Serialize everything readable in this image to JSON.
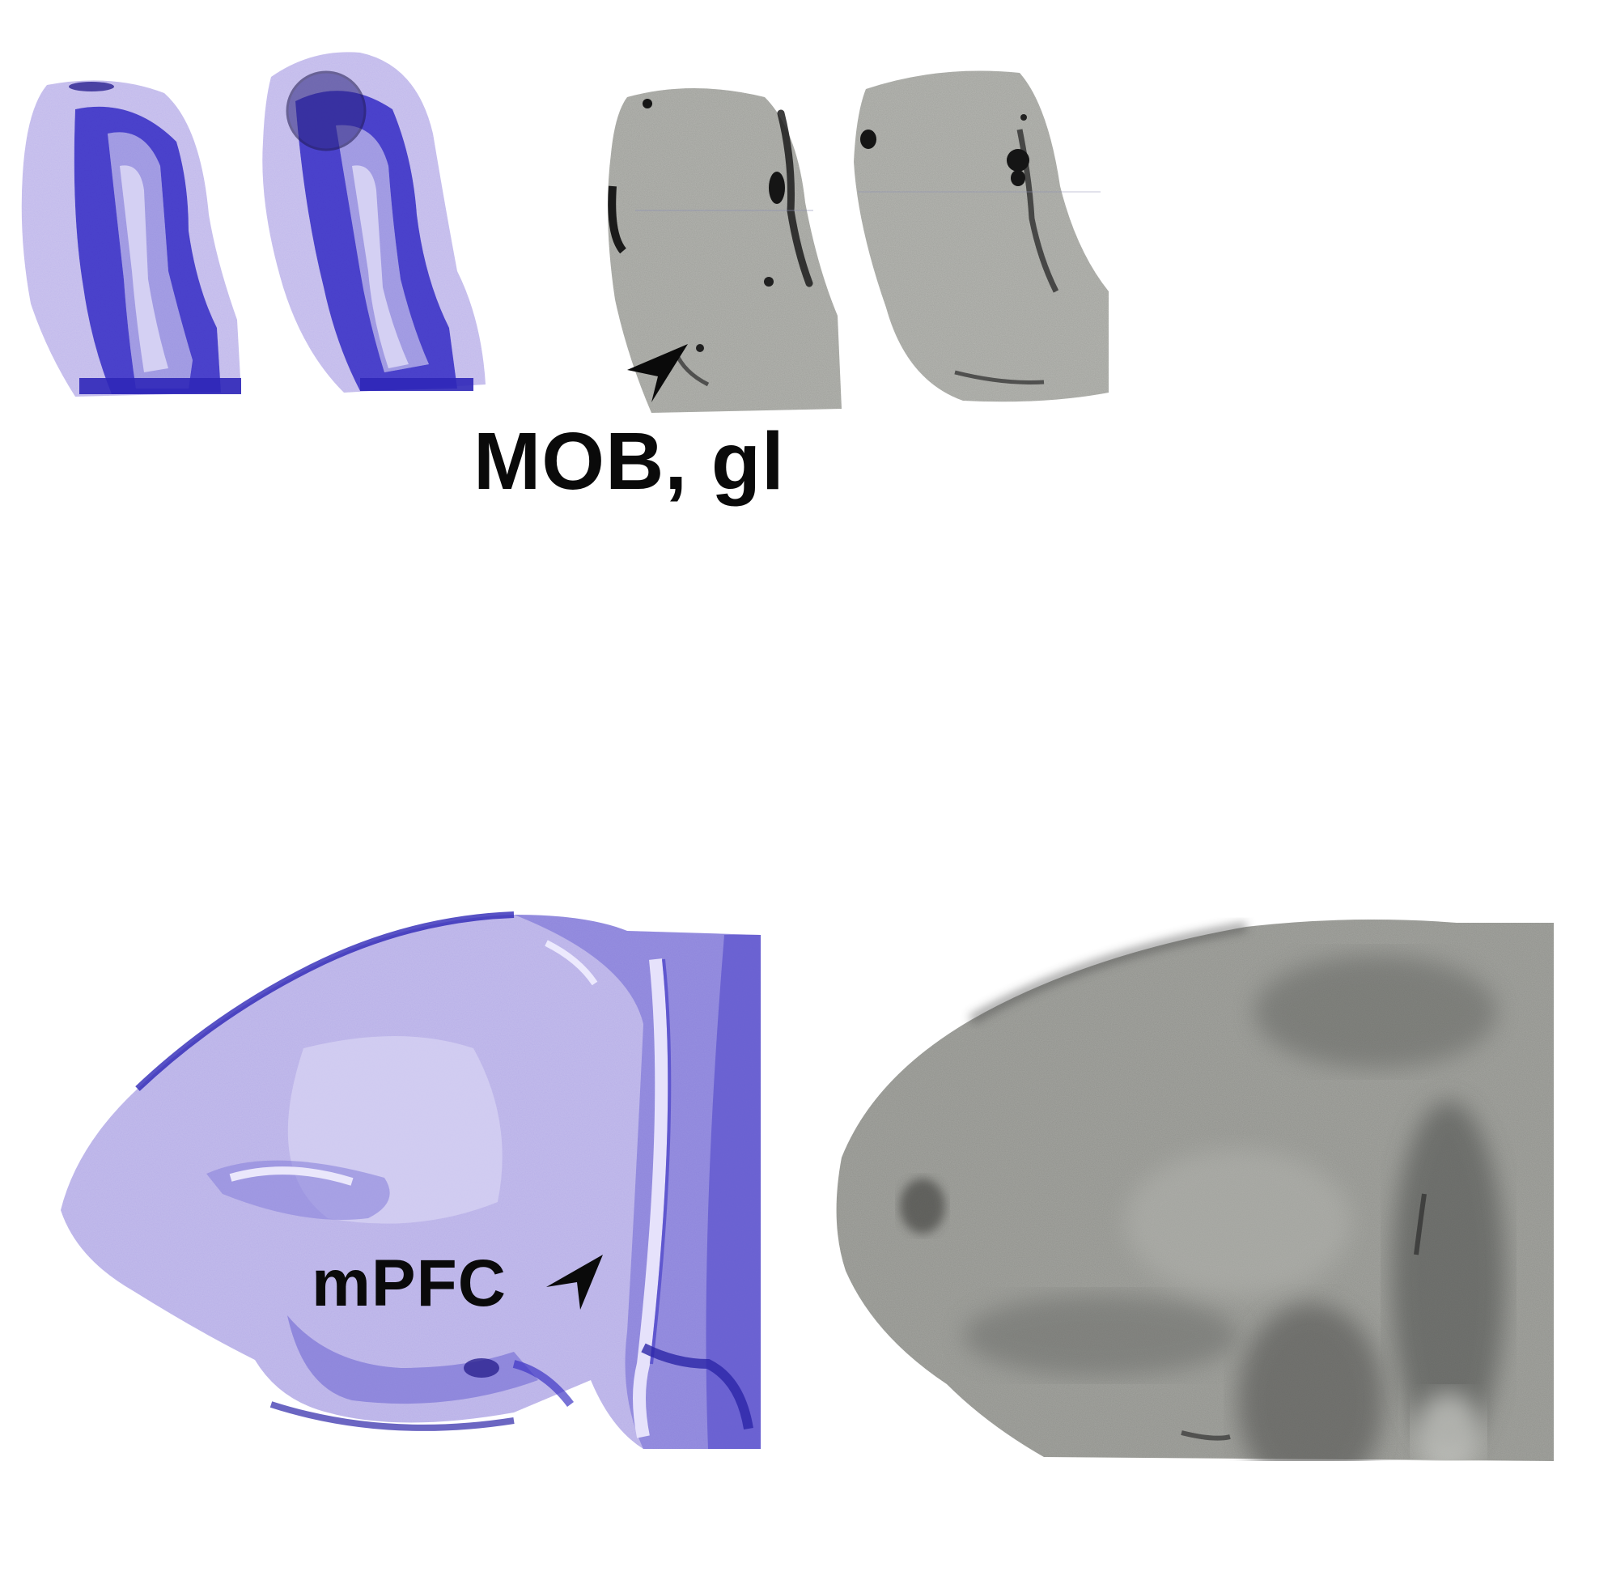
{
  "figure": {
    "labels": {
      "olfactory_bulb_region": "MOB, gl",
      "prefrontal_region": "mPFC"
    },
    "panels": [
      {
        "name": "olfactory-bulb-nissl-section-1",
        "stain": "nissl"
      },
      {
        "name": "olfactory-bulb-nissl-section-2",
        "stain": "nissl"
      },
      {
        "name": "olfactory-bulb-autoradiograph-1",
        "stain": "autoradiograph"
      },
      {
        "name": "olfactory-bulb-autoradiograph-2",
        "stain": "autoradiograph"
      },
      {
        "name": "sagittal-forebrain-nissl-section",
        "stain": "nissl"
      },
      {
        "name": "sagittal-forebrain-autoradiograph",
        "stain": "autoradiograph"
      }
    ],
    "colors": {
      "nissl_stain": "#3b34c8",
      "nissl_background": "#c9c3ef",
      "autoradiograph_background": "#a9aaa6",
      "autoradiograph_dark": "#1f1f1f",
      "label_text": "#0a0a0a"
    }
  }
}
